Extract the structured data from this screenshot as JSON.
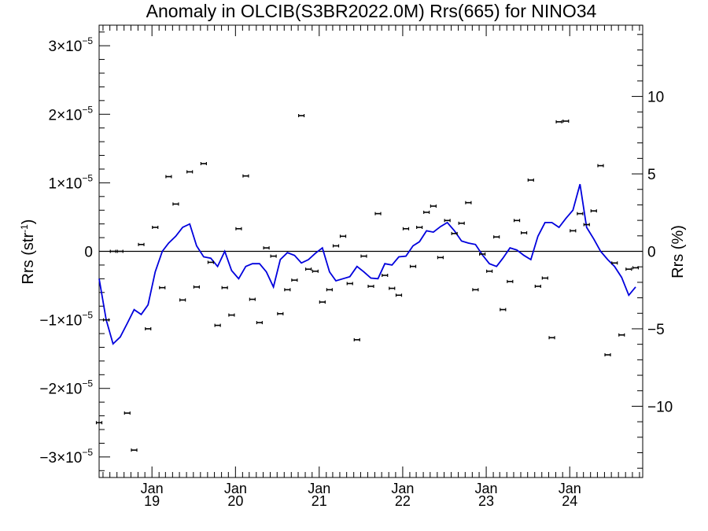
{
  "chart_data": {
    "type": "line",
    "title": "Anomaly in OLCIB(S3BR2022.0M) Rrs(665) for NINO34",
    "ylabel": {
      "base": "Rrs (str",
      "sup": "-1",
      "tail": ")"
    },
    "ylabel_right": "Rrs (%)",
    "xlim": [
      "2018-05-15",
      "2024-11-15"
    ],
    "ylim": [
      -3.3e-05,
      3.3e-05
    ],
    "ylim_right": [
      -14.6,
      14.6
    ],
    "grid": false,
    "x_ticks": [
      {
        "date": "2019-01-01",
        "top": "Jan",
        "bottom": "19"
      },
      {
        "date": "2020-01-01",
        "top": "Jan",
        "bottom": "20"
      },
      {
        "date": "2021-01-01",
        "top": "Jan",
        "bottom": "21"
      },
      {
        "date": "2022-01-01",
        "top": "Jan",
        "bottom": "22"
      },
      {
        "date": "2023-01-01",
        "top": "Jan",
        "bottom": "23"
      },
      {
        "date": "2024-01-01",
        "top": "Jan",
        "bottom": "24"
      }
    ],
    "y_ticks_left": [
      {
        "value": 3e-05,
        "mant": "3×10",
        "exp": "−5"
      },
      {
        "value": 2e-05,
        "mant": "2×10",
        "exp": "−5"
      },
      {
        "value": 1e-05,
        "mant": "1×10",
        "exp": "−5"
      },
      {
        "value": 0,
        "mant": "0",
        "exp": ""
      },
      {
        "value": -1e-05,
        "mant": "−1×10",
        "exp": "−5"
      },
      {
        "value": -2e-05,
        "mant": "−2×10",
        "exp": "−5"
      },
      {
        "value": -3e-05,
        "mant": "−3×10",
        "exp": "−5"
      }
    ],
    "y_ticks_right": [
      {
        "value": 10,
        "label": "10"
      },
      {
        "value": 5,
        "label": "5"
      },
      {
        "value": 0,
        "label": "0"
      },
      {
        "value": -5,
        "label": "−5"
      },
      {
        "value": -10,
        "label": "−10"
      }
    ],
    "series": [
      {
        "type": "errorbar",
        "color": "#000000",
        "points": [
          [
            "2018-05-15",
            -2.5e-05
          ],
          [
            "2018-06-15",
            -1e-05
          ],
          [
            "2018-07-15",
            0.0
          ],
          [
            "2018-08-15",
            0.0
          ],
          [
            "2018-09-15",
            -2.36e-05
          ],
          [
            "2018-10-15",
            -2.9e-05
          ],
          [
            "2018-11-15",
            1e-06
          ],
          [
            "2018-12-15",
            -1.13e-05
          ],
          [
            "2019-01-15",
            3.5e-06
          ],
          [
            "2019-02-15",
            -5.3e-06
          ],
          [
            "2019-03-15",
            1.09e-05
          ],
          [
            "2019-04-15",
            6.9e-06
          ],
          [
            "2019-05-15",
            -7.1e-06
          ],
          [
            "2019-06-15",
            1.16e-05
          ],
          [
            "2019-07-15",
            -5.2e-06
          ],
          [
            "2019-08-15",
            1.28e-05
          ],
          [
            "2019-09-15",
            -1.6e-06
          ],
          [
            "2019-10-15",
            -1.08e-05
          ],
          [
            "2019-11-15",
            -5.3e-06
          ],
          [
            "2019-12-15",
            -9.3e-06
          ],
          [
            "2020-01-15",
            3.3e-06
          ],
          [
            "2020-02-15",
            1.1e-05
          ],
          [
            "2020-03-15",
            -7e-06
          ],
          [
            "2020-04-15",
            -1.04e-05
          ],
          [
            "2020-05-15",
            5e-07
          ],
          [
            "2020-06-15",
            -7e-07
          ],
          [
            "2020-07-15",
            -9.1e-06
          ],
          [
            "2020-08-15",
            -5.6e-06
          ],
          [
            "2020-09-15",
            -4.2e-06
          ],
          [
            "2020-10-15",
            1.98e-05
          ],
          [
            "2020-11-15",
            -2.6e-06
          ],
          [
            "2020-12-15",
            -2.9e-06
          ],
          [
            "2021-01-15",
            -7.4e-06
          ],
          [
            "2021-02-15",
            -5.6e-06
          ],
          [
            "2021-03-15",
            8e-07
          ],
          [
            "2021-04-15",
            2.2e-06
          ],
          [
            "2021-05-15",
            -4.7e-06
          ],
          [
            "2021-06-15",
            -1.29e-05
          ],
          [
            "2021-07-15",
            -7e-07
          ],
          [
            "2021-08-15",
            -5.1e-06
          ],
          [
            "2021-09-15",
            5.5e-06
          ],
          [
            "2021-10-15",
            -3.5e-06
          ],
          [
            "2021-11-15",
            -5.4e-06
          ],
          [
            "2021-12-15",
            -6.4e-06
          ],
          [
            "2022-01-15",
            3.3e-06
          ],
          [
            "2022-02-15",
            -2.2e-06
          ],
          [
            "2022-03-15",
            3.5e-06
          ],
          [
            "2022-04-15",
            5.7e-06
          ],
          [
            "2022-05-15",
            6.6e-06
          ],
          [
            "2022-06-15",
            -9e-07
          ],
          [
            "2022-07-15",
            4.5e-06
          ],
          [
            "2022-08-15",
            2.6e-06
          ],
          [
            "2022-09-15",
            4.1e-06
          ],
          [
            "2022-10-15",
            7.1e-06
          ],
          [
            "2022-11-15",
            -5.6e-06
          ],
          [
            "2022-12-15",
            -4e-07
          ],
          [
            "2023-01-15",
            -2.9e-06
          ],
          [
            "2023-02-15",
            2.1e-06
          ],
          [
            "2023-03-15",
            -8.5e-06
          ],
          [
            "2023-04-15",
            -4.4e-06
          ],
          [
            "2023-05-15",
            4.5e-06
          ],
          [
            "2023-06-15",
            2.7e-06
          ],
          [
            "2023-07-15",
            1.04e-05
          ],
          [
            "2023-08-15",
            -5.1e-06
          ],
          [
            "2023-09-15",
            -3.9e-06
          ],
          [
            "2023-10-15",
            -1.26e-05
          ],
          [
            "2023-11-15",
            1.89e-05
          ],
          [
            "2023-12-15",
            1.9e-05
          ],
          [
            "2024-01-15",
            3e-06
          ],
          [
            "2024-02-15",
            5.5e-06
          ],
          [
            "2024-03-15",
            3.9e-06
          ],
          [
            "2024-04-15",
            5.9e-06
          ],
          [
            "2024-05-15",
            1.25e-05
          ],
          [
            "2024-06-15",
            -1.51e-05
          ],
          [
            "2024-07-15",
            -1.7e-06
          ],
          [
            "2024-08-15",
            -1.22e-05
          ],
          [
            "2024-09-15",
            -2.6e-06
          ],
          [
            "2024-10-15",
            -2.4e-06
          ]
        ]
      },
      {
        "type": "line",
        "color": "#0000dd",
        "axis": "left",
        "points": [
          [
            "2018-05-15",
            -4e-06
          ],
          [
            "2018-06-15",
            -1e-05
          ],
          [
            "2018-07-15",
            -1.35e-05
          ],
          [
            "2018-08-15",
            -1.25e-05
          ],
          [
            "2018-09-15",
            -1.05e-05
          ],
          [
            "2018-10-15",
            -8.5e-06
          ],
          [
            "2018-11-15",
            -9.2e-06
          ],
          [
            "2018-12-15",
            -7.8e-06
          ],
          [
            "2019-01-15",
            -3e-06
          ],
          [
            "2019-02-15",
            0.0
          ],
          [
            "2019-03-15",
            1.2e-06
          ],
          [
            "2019-04-15",
            2.2e-06
          ],
          [
            "2019-05-15",
            3.5e-06
          ],
          [
            "2019-06-15",
            4e-06
          ],
          [
            "2019-07-15",
            8e-07
          ],
          [
            "2019-08-15",
            -8e-07
          ],
          [
            "2019-09-15",
            -1e-06
          ],
          [
            "2019-10-15",
            -2.2e-06
          ],
          [
            "2019-11-15",
            0.0
          ],
          [
            "2019-12-15",
            -2.8e-06
          ],
          [
            "2020-01-15",
            -4e-06
          ],
          [
            "2020-02-15",
            -2.2e-06
          ],
          [
            "2020-03-15",
            -1.8e-06
          ],
          [
            "2020-04-15",
            -1.8e-06
          ],
          [
            "2020-05-15",
            -3e-06
          ],
          [
            "2020-06-15",
            -5.2e-06
          ],
          [
            "2020-07-15",
            -1.2e-06
          ],
          [
            "2020-08-15",
            -2e-07
          ],
          [
            "2020-09-15",
            -6e-07
          ],
          [
            "2020-10-15",
            -1.7e-06
          ],
          [
            "2020-11-15",
            -1.2e-06
          ],
          [
            "2020-12-15",
            -3e-07
          ],
          [
            "2021-01-15",
            5e-07
          ],
          [
            "2021-02-15",
            -3e-06
          ],
          [
            "2021-03-15",
            -4.3e-06
          ],
          [
            "2021-04-15",
            -4e-06
          ],
          [
            "2021-05-15",
            -3.7e-06
          ],
          [
            "2021-06-15",
            -2.2e-06
          ],
          [
            "2021-07-15",
            -3e-06
          ],
          [
            "2021-08-15",
            -3.9e-06
          ],
          [
            "2021-09-15",
            -4e-06
          ],
          [
            "2021-10-15",
            -1.8e-06
          ],
          [
            "2021-11-15",
            -2e-06
          ],
          [
            "2021-12-15",
            -8e-07
          ],
          [
            "2022-01-15",
            -7e-07
          ],
          [
            "2022-02-15",
            8e-07
          ],
          [
            "2022-03-15",
            1.4e-06
          ],
          [
            "2022-04-15",
            3e-06
          ],
          [
            "2022-05-15",
            2.8e-06
          ],
          [
            "2022-06-15",
            3.6e-06
          ],
          [
            "2022-07-15",
            4.2e-06
          ],
          [
            "2022-08-15",
            3e-06
          ],
          [
            "2022-09-15",
            1.5e-06
          ],
          [
            "2022-10-15",
            1.2e-06
          ],
          [
            "2022-11-15",
            1e-06
          ],
          [
            "2022-12-15",
            -5e-07
          ],
          [
            "2023-01-15",
            -1.8e-06
          ],
          [
            "2023-02-15",
            -2.2e-06
          ],
          [
            "2023-03-15",
            -1e-06
          ],
          [
            "2023-04-15",
            5e-07
          ],
          [
            "2023-05-15",
            2e-07
          ],
          [
            "2023-06-15",
            -6e-07
          ],
          [
            "2023-07-15",
            -1.2e-06
          ],
          [
            "2023-08-15",
            2.2e-06
          ],
          [
            "2023-09-15",
            4.2e-06
          ],
          [
            "2023-10-15",
            4.2e-06
          ],
          [
            "2023-11-15",
            3.5e-06
          ],
          [
            "2023-12-15",
            4.8e-06
          ],
          [
            "2024-01-15",
            6e-06
          ],
          [
            "2024-02-15",
            9.8e-06
          ],
          [
            "2024-03-15",
            3.5e-06
          ],
          [
            "2024-04-15",
            1.8e-06
          ],
          [
            "2024-05-15",
            0.0
          ],
          [
            "2024-06-15",
            -1.2e-06
          ],
          [
            "2024-07-15",
            -2.2e-06
          ],
          [
            "2024-08-15",
            -3.8e-06
          ],
          [
            "2024-09-15",
            -6.4e-06
          ],
          [
            "2024-10-15",
            -5.2e-06
          ]
        ]
      }
    ]
  }
}
